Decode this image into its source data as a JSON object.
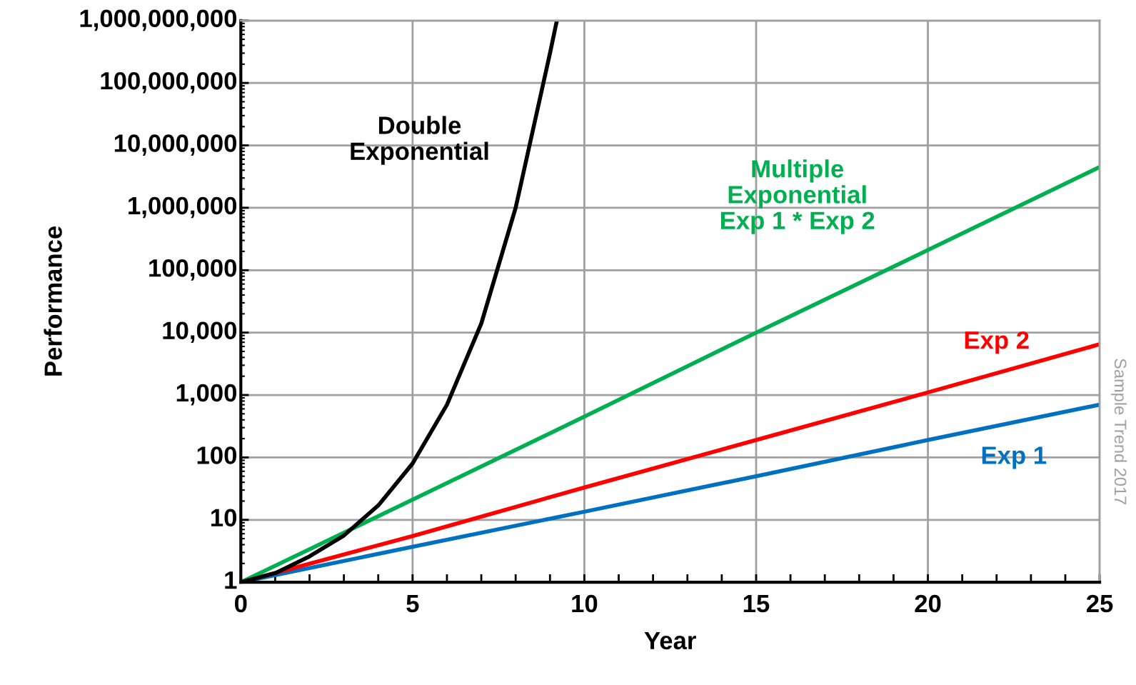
{
  "chart_data": {
    "type": "line",
    "xlabel": "Year",
    "ylabel": "Performance",
    "log": "y",
    "grid": true,
    "legend": false,
    "marker": "none",
    "line_style": "solid",
    "xlim": [
      0,
      25
    ],
    "ylim": [
      1,
      1000000000
    ],
    "xticks": [
      0,
      {
        "value": 1,
        "label": null
      },
      {
        "value": 2,
        "label": null
      },
      {
        "value": 3,
        "label": null
      },
      {
        "value": 4,
        "label": null
      },
      5,
      {
        "value": 6,
        "label": null
      },
      {
        "value": 7,
        "label": null
      },
      {
        "value": 8,
        "label": null
      },
      {
        "value": 9,
        "label": null
      },
      10,
      {
        "value": 11,
        "label": null
      },
      {
        "value": 12,
        "label": null
      },
      {
        "value": 13,
        "label": null
      },
      {
        "value": 14,
        "label": null
      },
      15,
      {
        "value": 16,
        "label": null
      },
      {
        "value": 17,
        "label": null
      },
      {
        "value": 18,
        "label": null
      },
      {
        "value": 19,
        "label": null
      },
      20,
      {
        "value": 21,
        "label": null
      },
      {
        "value": 22,
        "label": null
      },
      {
        "value": 23,
        "label": null
      },
      {
        "value": 24,
        "label": null
      },
      25
    ],
    "yticks": [
      1,
      10,
      100,
      {
        "value": 1000,
        "label": "1,000"
      },
      {
        "value": 10000,
        "label": "10,000"
      },
      {
        "value": 100000,
        "label": "100,000"
      },
      {
        "value": 1000000,
        "label": "1,000,000"
      },
      {
        "value": 10000000,
        "label": "10,000,000"
      },
      {
        "value": 100000000,
        "label": "100,000,000"
      },
      {
        "value": 1000000000,
        "label": "1,000,000,000"
      }
    ],
    "series": [
      {
        "name": "Exp 1",
        "color": "#0070c0",
        "x": [
          0,
          5,
          10,
          15,
          20,
          25
        ],
        "values": [
          1,
          3.7,
          13.5,
          50,
          190,
          700
        ]
      },
      {
        "name": "Exp 2",
        "color": "#ff0000",
        "x": [
          0,
          5,
          10,
          15,
          20,
          25
        ],
        "values": [
          1,
          5.5,
          33,
          190,
          1100,
          6500
        ]
      },
      {
        "name": "Multiple\nExponential\nExp 1 * Exp 2",
        "color": "#00b050",
        "x": [
          0,
          5,
          10,
          15,
          20,
          25
        ],
        "values": [
          1,
          21,
          450,
          10000,
          210000,
          4500000
        ]
      },
      {
        "name": "Double\nExponential",
        "color": "#000000",
        "x": [
          0,
          1,
          2,
          3,
          4,
          5,
          6,
          7,
          8,
          9,
          9.2
        ],
        "values": [
          1,
          1.4,
          2.6,
          5.6,
          17,
          80,
          700,
          14000,
          1000000,
          300000000,
          1000000000
        ]
      }
    ],
    "annotations": [
      "Sample Trend 2017"
    ]
  }
}
